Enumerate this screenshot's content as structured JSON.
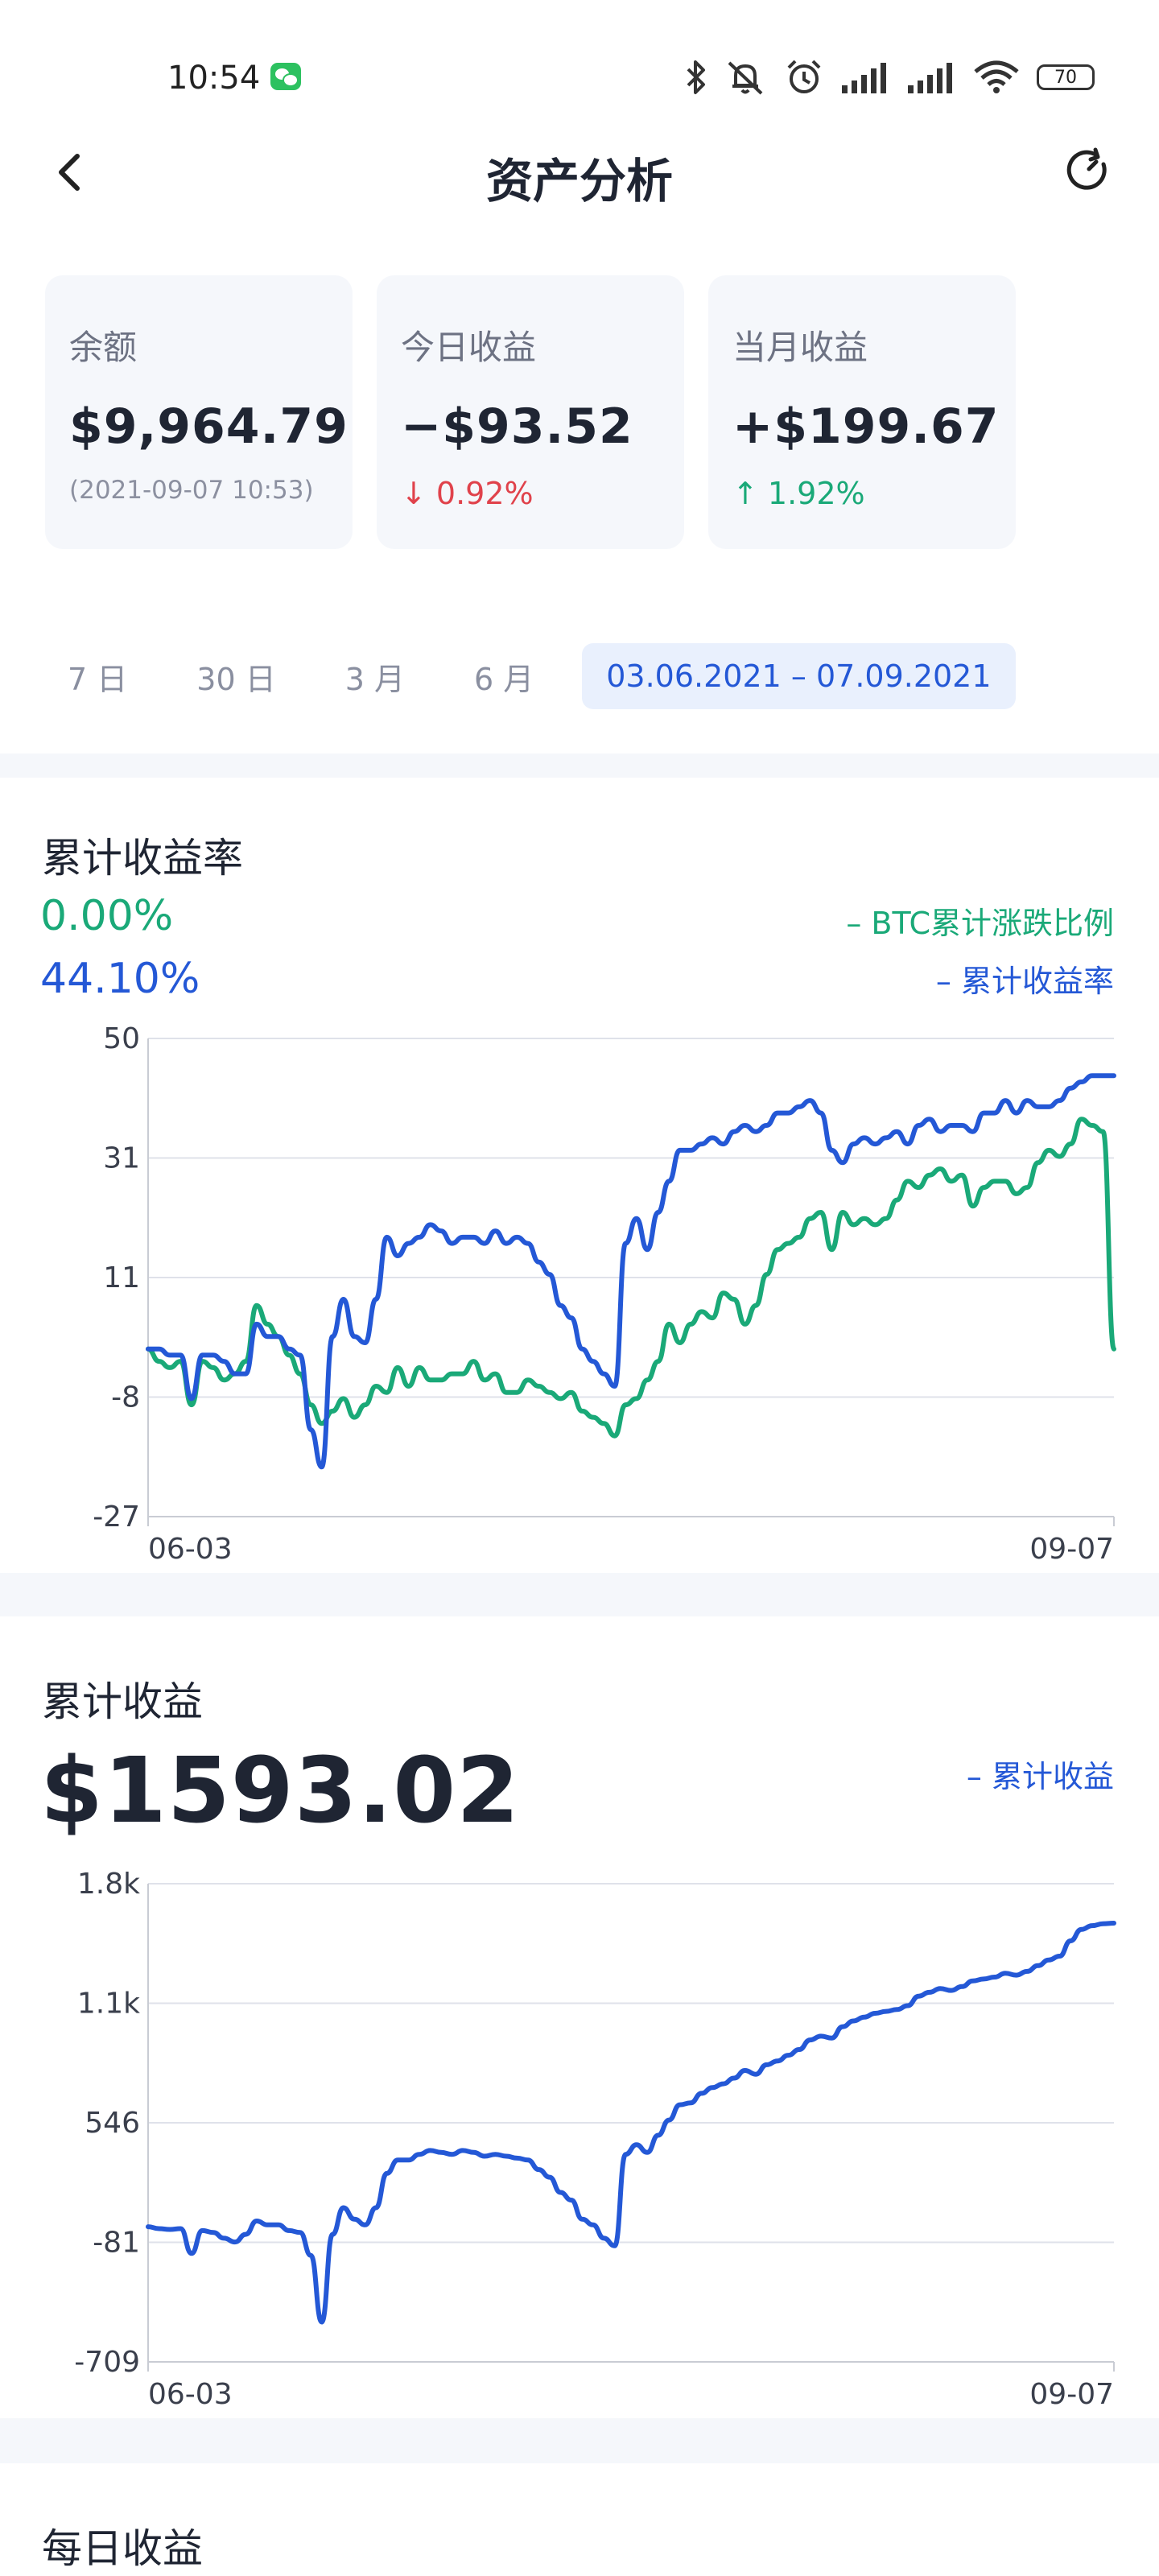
{
  "status_bar": {
    "time": "10:54",
    "battery": "70"
  },
  "header": {
    "title": "资产分析"
  },
  "cards": [
    {
      "label": "余额",
      "value": "$9,964.79",
      "sub": "(2021-09-07 10:53)"
    },
    {
      "label": "今日收益",
      "value": "−$93.52",
      "sub": "↓ 0.92%"
    },
    {
      "label": "当月收益",
      "value": "+$199.67",
      "sub": "↑ 1.92%"
    }
  ],
  "range_tabs": [
    "7 日",
    "30 日",
    "3 月",
    "6 月",
    "03.06.2021 – 07.09.2021"
  ],
  "colors": {
    "green": "#1aa978",
    "blue": "#2458d6",
    "red": "#e0424b"
  },
  "section_return_rate": {
    "title": "累计收益率",
    "btc_value": "0.00%",
    "portfolio_value": "44.10%",
    "legend_btc": "– BTC累计涨跌比例",
    "legend_portfolio": "– 累计收益率"
  },
  "section_cumulative": {
    "title": "累计收益",
    "value": "$1593.02",
    "legend": "– 累计收益"
  },
  "section_daily": {
    "title": "每日收益"
  },
  "chart_data": [
    {
      "type": "line",
      "title": "累计收益率",
      "x_labels": [
        "06-03",
        "09-07"
      ],
      "x_range": [
        "2021-06-03",
        "2021-09-07"
      ],
      "y_ticks": [
        "50",
        "31",
        "11",
        "-8",
        "-27"
      ],
      "ylim": [
        -27,
        50
      ],
      "grid": true,
      "legend_placement": "top-right",
      "series": [
        {
          "name": "累计收益率",
          "color": "#2458d6",
          "values": [
            0,
            0,
            -1,
            -1,
            -8,
            -1,
            -1,
            -2,
            -4,
            -4,
            4,
            2,
            2,
            0,
            -1,
            -13,
            -19,
            2,
            8,
            2,
            1,
            8,
            18,
            15,
            17,
            18,
            20,
            19,
            17,
            18,
            18,
            17,
            19,
            17,
            18,
            17,
            14,
            12,
            7,
            5,
            0,
            -2,
            -4,
            -6,
            17,
            21,
            16,
            22,
            27,
            32,
            32,
            33,
            34,
            33,
            35,
            36,
            35,
            36,
            38,
            38,
            39,
            40,
            38,
            32,
            30,
            33,
            34,
            33,
            34,
            35,
            33,
            36,
            37,
            35,
            36,
            36,
            35,
            38,
            38,
            40,
            38,
            40,
            39,
            39,
            40,
            42,
            43,
            44,
            44,
            44
          ]
        },
        {
          "name": "BTC累计涨跌比例",
          "color": "#1aa978",
          "values": [
            0,
            -2,
            -3,
            -2,
            -9,
            -2,
            -3,
            -5,
            -4,
            -2,
            7,
            4,
            2,
            -1,
            -4,
            -9,
            -12,
            -10,
            -8,
            -11,
            -9,
            -6,
            -7,
            -3,
            -6,
            -3,
            -5,
            -5,
            -4,
            -4,
            -2,
            -5,
            -4,
            -7,
            -7,
            -5,
            -6,
            -7,
            -8,
            -7,
            -10,
            -11,
            -12,
            -14,
            -9,
            -8,
            -5,
            -2,
            4,
            1,
            4,
            6,
            5,
            9,
            8,
            4,
            7,
            12,
            16,
            17,
            18,
            21,
            22,
            16,
            22,
            20,
            21,
            20,
            21,
            24,
            27,
            26,
            28,
            29,
            27,
            28,
            23,
            26,
            27,
            27,
            25,
            26,
            30,
            32,
            31,
            33,
            37,
            36,
            35,
            0
          ]
        }
      ]
    },
    {
      "type": "line",
      "title": "累计收益",
      "x_labels": [
        "06-03",
        "09-07"
      ],
      "x_range": [
        "2021-06-03",
        "2021-09-07"
      ],
      "y_ticks": [
        "1.8k",
        "1.1k",
        "546",
        "-81",
        "-709"
      ],
      "ylim": [
        -709,
        1800
      ],
      "grid": true,
      "legend_placement": "top-right",
      "series": [
        {
          "name": "累计收益",
          "color": "#2458d6",
          "values": [
            0,
            -10,
            -14,
            -10,
            -140,
            -20,
            -30,
            -60,
            -80,
            -40,
            30,
            10,
            10,
            -20,
            -30,
            -150,
            -500,
            -40,
            100,
            40,
            10,
            100,
            280,
            350,
            350,
            380,
            400,
            390,
            380,
            400,
            390,
            370,
            380,
            370,
            360,
            350,
            300,
            260,
            180,
            140,
            40,
            10,
            -60,
            -100,
            380,
            430,
            390,
            480,
            560,
            640,
            650,
            700,
            730,
            750,
            780,
            820,
            800,
            850,
            870,
            900,
            930,
            980,
            1000,
            990,
            1050,
            1080,
            1100,
            1120,
            1130,
            1140,
            1160,
            1210,
            1230,
            1250,
            1240,
            1260,
            1290,
            1300,
            1310,
            1330,
            1320,
            1340,
            1370,
            1400,
            1420,
            1500,
            1560,
            1580,
            1590,
            1593
          ]
        }
      ]
    }
  ]
}
